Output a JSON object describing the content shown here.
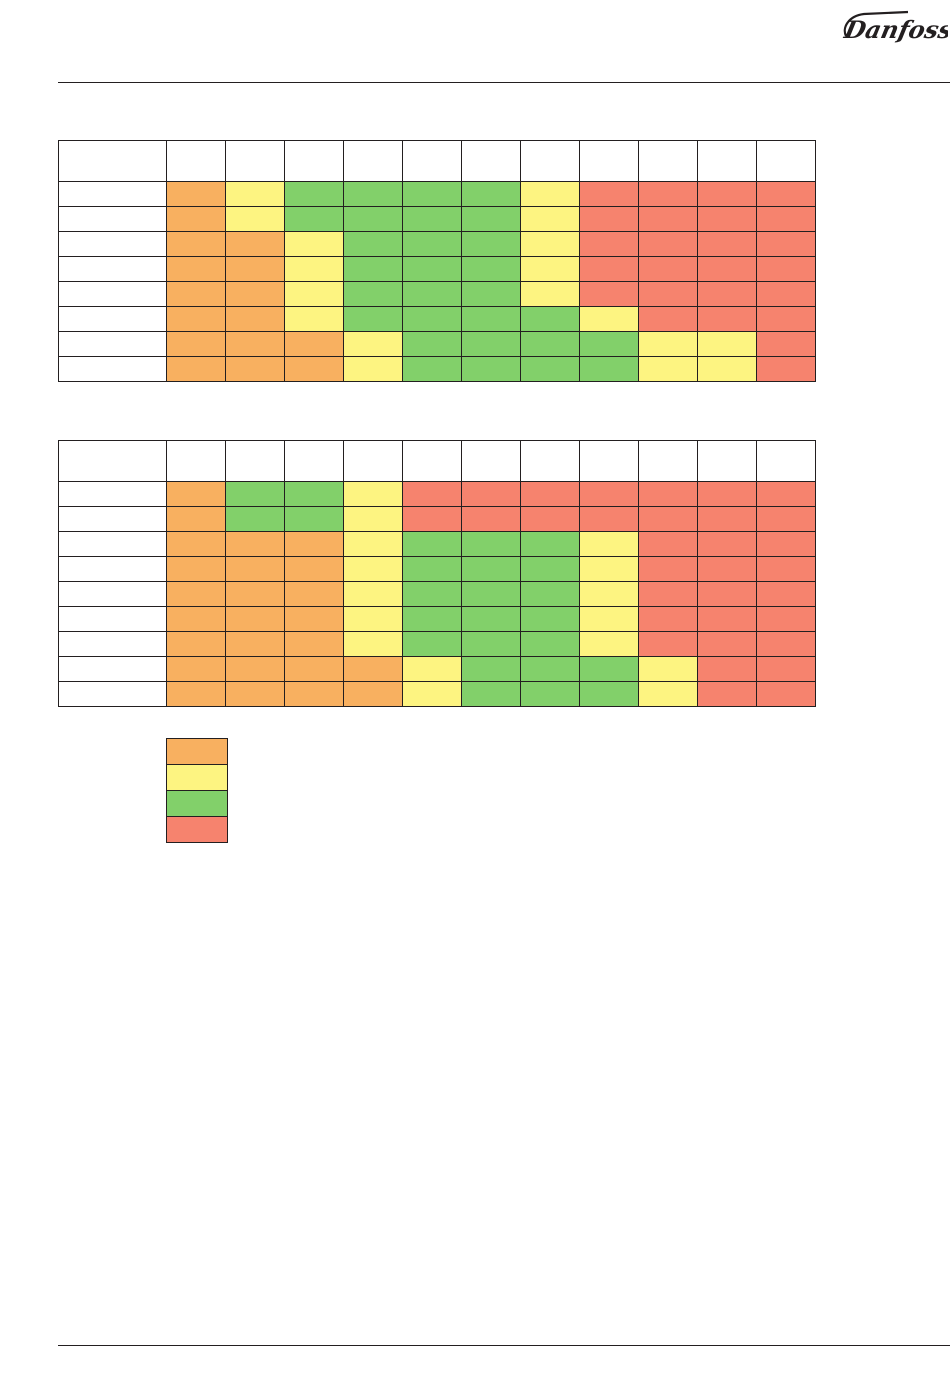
{
  "header": {
    "logo_text": "Danfoss",
    "logo_color": "#231f20"
  },
  "colors": {
    "O": "#f8b060",
    "Y": "#fdf481",
    "G": "#82d06a",
    "R": "#f6836e"
  },
  "matrix_1": {
    "rows": [
      "OYGGGGYRRRR",
      "OYGGGGYRRRR",
      "OOYGGGYRRRR",
      "OOYGGGYRRRR",
      "OOYGGGYRRRR",
      "OOYGGGGYRRR",
      "OOOYGGGGYYR",
      "OOOYGGGGYYR"
    ]
  },
  "matrix_2": {
    "rows": [
      "OGGYRRRRRRR",
      "OGGYRRRRRRR",
      "OOOYGGGYRRR",
      "OOOYGGGYRRR",
      "OOOYGGGYRRR",
      "OOOYGGGYRRR",
      "OOOYGGGYRRR",
      "OOOOYGGGYRR",
      "OOOOYGGGYRR"
    ]
  },
  "legend": {
    "swatches": [
      "O",
      "Y",
      "G",
      "R"
    ]
  }
}
